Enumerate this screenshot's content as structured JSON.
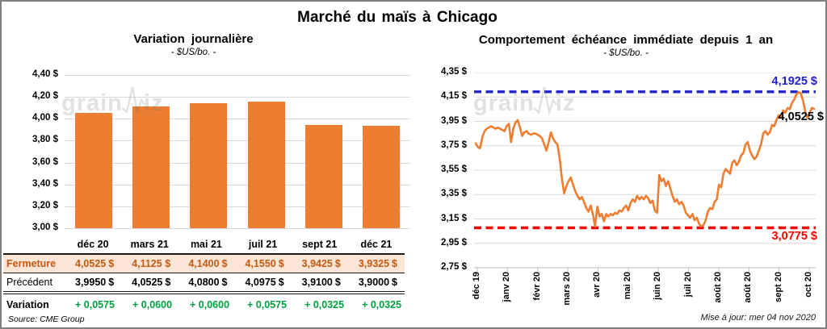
{
  "page": {
    "title": "Marché du maïs à Chicago",
    "source_note": "Source: CME Group",
    "update_note": "Mise à jour: mer 04 nov 2020",
    "watermark": {
      "part1": "grain",
      "part2": "iz",
      "icon": "zigzag-line-icon"
    }
  },
  "colors": {
    "series_orange": "#ed7d31",
    "high_blue": "#2222cc",
    "low_red": "#ff0000",
    "close_row_bg": "#fbe5d6",
    "close_row_text": "#c45911",
    "variation_green": "#00a13e",
    "gridline": "#d9d9d9",
    "frame": "#7f7f7f"
  },
  "chart_data": [
    {
      "type": "bar",
      "title": "Variation journalière",
      "subtitle": "- $US/bo. -",
      "categories": [
        "déc 20",
        "mars 21",
        "mai 21",
        "juil 21",
        "sept 21",
        "déc 21"
      ],
      "values": [
        4.0525,
        4.1125,
        4.14,
        4.155,
        3.9425,
        3.9325
      ],
      "ylim": [
        3.0,
        4.4
      ],
      "ytick_labels": [
        "4,40 $",
        "4,20 $",
        "4,00 $",
        "3,80 $",
        "3,60 $",
        "3,40 $",
        "3,20 $",
        "3,00 $"
      ],
      "grid": true,
      "bar_color": "#ed7d31"
    },
    {
      "type": "line",
      "title": "Comportement échéance immédiate depuis 1 an",
      "subtitle": "- $US/bo. -",
      "x_labels": [
        "déc 19",
        "janv 20",
        "févr 20",
        "mars 20",
        "avr 20",
        "mai 20",
        "juin 20",
        "juil 20",
        "août 20",
        "août 20",
        "sept 20",
        "oct 20"
      ],
      "ylim": [
        2.75,
        4.35
      ],
      "ytick_labels": [
        "4,35 $",
        "4,15 $",
        "3,95 $",
        "3,75 $",
        "3,55 $",
        "3,35 $",
        "3,15 $",
        "2,95 $",
        "2,75 $"
      ],
      "grid": true,
      "line_color": "#ed7d31",
      "high_line": {
        "value": 4.1925,
        "label": "4,1925 $",
        "color": "#2222cc"
      },
      "low_line": {
        "value": 3.0775,
        "label": "3,0775 $",
        "color": "#ff0000"
      },
      "last_point": {
        "value": 4.0525,
        "label": "4,0525 $",
        "color": "#000000"
      },
      "values": [
        3.77,
        3.74,
        3.73,
        3.82,
        3.87,
        3.89,
        3.9,
        3.91,
        3.9,
        3.89,
        3.9,
        3.89,
        3.88,
        3.87,
        3.91,
        3.93,
        3.78,
        3.89,
        3.94,
        3.96,
        3.9,
        3.83,
        3.86,
        3.87,
        3.85,
        3.84,
        3.85,
        3.85,
        3.84,
        3.83,
        3.81,
        3.76,
        3.71,
        3.78,
        3.86,
        3.81,
        3.78,
        3.76,
        3.64,
        3.48,
        3.36,
        3.42,
        3.46,
        3.49,
        3.43,
        3.38,
        3.34,
        3.31,
        3.33,
        3.29,
        3.24,
        3.21,
        3.26,
        3.19,
        3.09,
        3.25,
        3.17,
        3.19,
        3.13,
        3.19,
        3.17,
        3.19,
        3.18,
        3.2,
        3.19,
        3.22,
        3.21,
        3.24,
        3.26,
        3.22,
        3.28,
        3.31,
        3.29,
        3.34,
        3.31,
        3.33,
        3.31,
        3.34,
        3.32,
        3.28,
        3.3,
        3.22,
        3.2,
        3.51,
        3.46,
        3.48,
        3.42,
        3.46,
        3.4,
        3.34,
        3.29,
        3.31,
        3.27,
        3.29,
        3.26,
        3.2,
        3.18,
        3.16,
        3.19,
        3.14,
        3.16,
        3.11,
        3.09,
        3.1,
        3.14,
        3.21,
        3.24,
        3.23,
        3.29,
        3.31,
        3.43,
        3.41,
        3.52,
        3.56,
        3.54,
        3.52,
        3.61,
        3.63,
        3.59,
        3.62,
        3.67,
        3.69,
        3.76,
        3.78,
        3.71,
        3.67,
        3.64,
        3.66,
        3.71,
        3.76,
        3.85,
        3.87,
        3.84,
        3.86,
        3.92,
        3.91,
        3.96,
        4.0,
        3.98,
        4.04,
        4.02,
        4.06,
        4.05,
        4.1,
        4.13,
        4.17,
        4.19,
        4.18,
        4.12,
        4.03,
        3.98,
        4.02,
        4.06,
        4.0525
      ]
    }
  ],
  "table": {
    "columns": [
      "déc 20",
      "mars 21",
      "mai 21",
      "juil 21",
      "sept 21",
      "déc 21"
    ],
    "rows": [
      {
        "label": "Fermeture",
        "style": "close",
        "currency": "$",
        "values": [
          "4,0525",
          "4,1125",
          "4,1400",
          "4,1550",
          "3,9425",
          "3,9325"
        ]
      },
      {
        "label": "Précédent",
        "style": "prev",
        "currency": "$",
        "values": [
          "3,9950",
          "4,0525",
          "4,0800",
          "4,0975",
          "3,9100",
          "3,9000"
        ]
      },
      {
        "label": "Variation",
        "style": "varn",
        "currency": "",
        "values": [
          "+ 0,0575",
          "+ 0,0600",
          "+ 0,0600",
          "+ 0,0575",
          "+ 0,0325",
          "+ 0,0325"
        ]
      }
    ]
  }
}
